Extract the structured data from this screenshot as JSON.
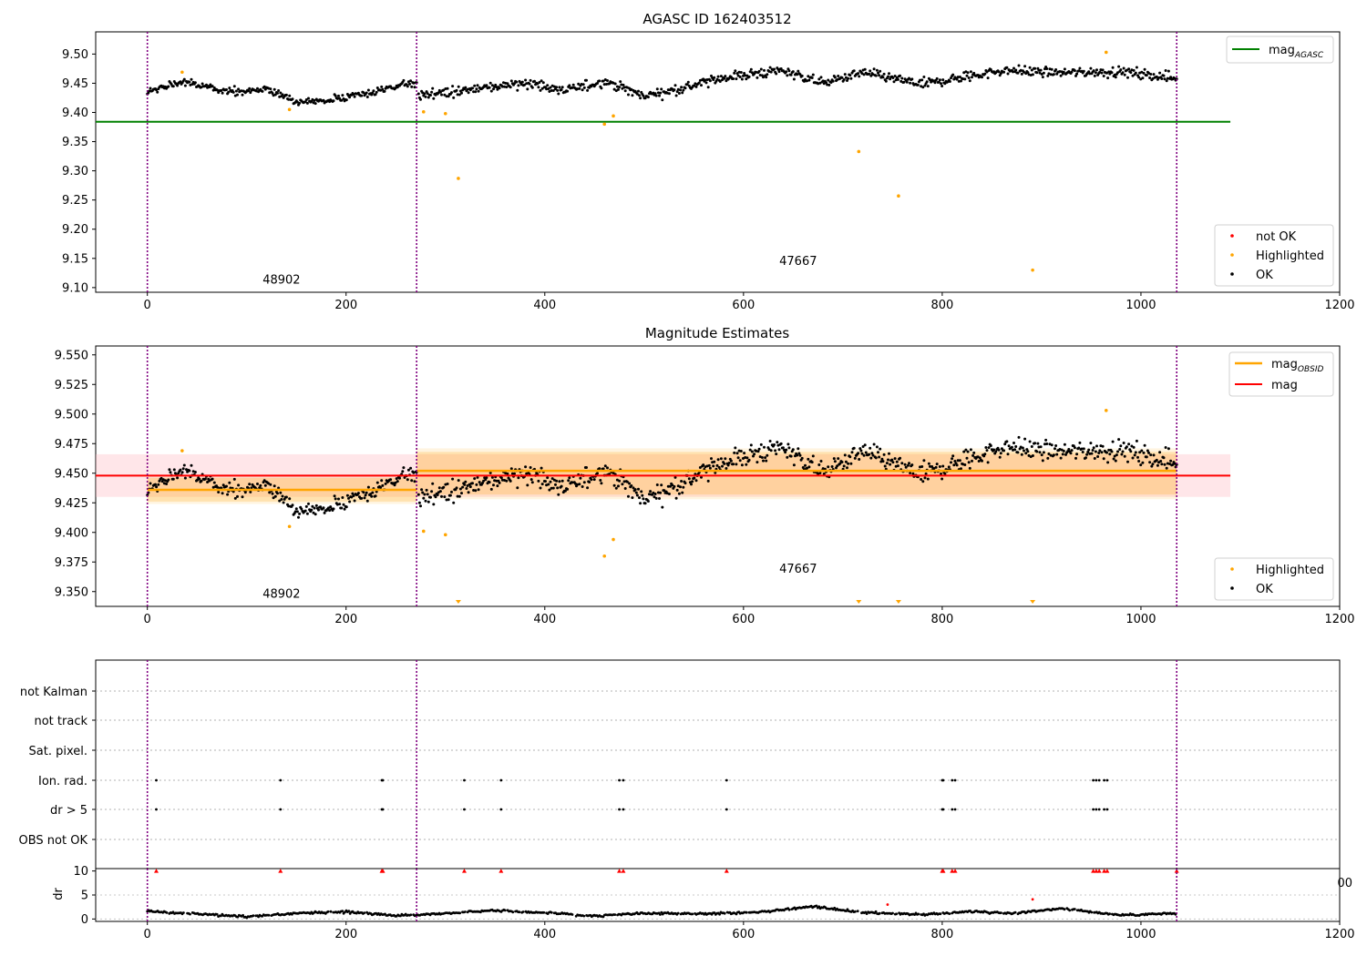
{
  "chart_data": [
    {
      "type": "scatter",
      "title": "AGASC ID 162403512",
      "xlim": [
        -52,
        1200
      ],
      "ylim": [
        9.092,
        9.538
      ],
      "xticks": [
        "0",
        "200",
        "400",
        "600",
        "800",
        "1000",
        "1200"
      ],
      "yticks": [
        "9.10",
        "9.15",
        "9.20",
        "9.25",
        "9.30",
        "9.35",
        "9.40",
        "9.45",
        "9.50"
      ],
      "vlines": [
        0,
        271,
        1036
      ],
      "obsid_labels": [
        {
          "text": "48902",
          "x": 135,
          "y": 9.107
        },
        {
          "text": "47667",
          "x": 655,
          "y": 9.139
        }
      ],
      "legend_top": {
        "items": [
          {
            "label": "mag",
            "sub": "AGASC",
            "color": "#008000"
          }
        ]
      },
      "legend_bottom": {
        "items": [
          {
            "label": "not OK",
            "color": "#ff0000"
          },
          {
            "label": "Highlighted",
            "color": "#ffa500"
          },
          {
            "label": "OK",
            "color": "#000000"
          }
        ]
      },
      "mag_agasc": {
        "value": 9.384,
        "xrange": [
          -52,
          1090
        ]
      },
      "series": [
        {
          "name": "Highlighted",
          "color": "#ffa500",
          "points": [
            [
              35,
              9.469
            ],
            [
              143,
              9.405
            ],
            [
              278,
              9.401
            ],
            [
              300,
              9.398
            ],
            [
              313,
              9.287
            ],
            [
              460,
              9.38
            ],
            [
              469,
              9.394
            ],
            [
              716,
              9.333
            ],
            [
              756,
              9.257
            ],
            [
              891,
              9.13
            ],
            [
              965,
              9.503
            ]
          ]
        },
        {
          "name": "OK",
          "color": "#000000",
          "segments": [
            {
              "x0": 0,
              "x1": 271,
              "n": 270,
              "c": [
                [
                  0,
                  9.437
                ],
                [
                  40,
                  9.452
                ],
                [
                  80,
                  9.434
                ],
                [
                  120,
                  9.44
                ],
                [
                  150,
                  9.418
                ],
                [
                  180,
                  9.42
                ],
                [
                  210,
                  9.428
                ],
                [
                  271,
                  9.452
                ]
              ],
              "s": 0.008
            },
            {
              "x0": 273,
              "x1": 1036,
              "n": 760,
              "c": [
                [
                  273,
                  9.43
                ],
                [
                  320,
                  9.437
                ],
                [
                  380,
                  9.452
                ],
                [
                  420,
                  9.436
                ],
                [
                  460,
                  9.454
                ],
                [
                  500,
                  9.428
                ],
                [
                  540,
                  9.442
                ],
                [
                  580,
                  9.46
                ],
                [
                  640,
                  9.472
                ],
                [
                  680,
                  9.45
                ],
                [
                  720,
                  9.468
                ],
                [
                  780,
                  9.448
                ],
                [
                  820,
                  9.46
                ],
                [
                  860,
                  9.472
                ],
                [
                  920,
                  9.468
                ],
                [
                  980,
                  9.47
                ],
                [
                  1036,
                  9.458
                ]
              ],
              "s": 0.011
            }
          ]
        }
      ]
    },
    {
      "type": "scatter",
      "title": "Magnitude Estimates",
      "xlim": [
        -52,
        1200
      ],
      "ylim": [
        9.3375,
        9.5575
      ],
      "xticks": [
        "0",
        "200",
        "400",
        "600",
        "800",
        "1000",
        "1200"
      ],
      "yticks": [
        "9.350",
        "9.375",
        "9.400",
        "9.425",
        "9.450",
        "9.475",
        "9.500",
        "9.525",
        "9.550"
      ],
      "vlines": [
        0,
        271,
        1036
      ],
      "obsid_labels": [
        {
          "text": "48902",
          "x": 135,
          "y": 9.345
        },
        {
          "text": "47667",
          "x": 655,
          "y": 9.366
        }
      ],
      "legend_top": {
        "items": [
          {
            "label": "mag",
            "sub": "OBSID",
            "color": "#ffa500"
          },
          {
            "label": "mag",
            "color": "#ff0000"
          }
        ]
      },
      "legend_bottom": {
        "items": [
          {
            "label": "Highlighted",
            "color": "#ffa500"
          },
          {
            "label": "OK",
            "color": "#000000"
          }
        ]
      },
      "mag": {
        "value": 9.448,
        "band": [
          9.43,
          9.466
        ],
        "xrange": [
          -52,
          1090
        ]
      },
      "mag_obsid": [
        {
          "x0": 0,
          "x1": 271,
          "value": 9.436,
          "band": [
            9.426,
            9.446
          ],
          "band_outer": [
            9.424,
            9.448
          ]
        },
        {
          "x0": 271,
          "x1": 1036,
          "value": 9.452,
          "band": [
            9.432,
            9.468
          ],
          "band_outer": [
            9.428,
            9.471
          ]
        }
      ],
      "out_of_range_markers": [
        313,
        716,
        756,
        891
      ],
      "series": [
        {
          "name": "Highlighted",
          "color": "#ffa500",
          "points": [
            [
              35,
              9.469
            ],
            [
              143,
              9.405
            ],
            [
              278,
              9.401
            ],
            [
              300,
              9.398
            ],
            [
              460,
              9.38
            ],
            [
              469,
              9.394
            ],
            [
              965,
              9.503
            ]
          ]
        },
        {
          "name": "OK",
          "color": "#000000",
          "segments": [
            {
              "x0": 0,
              "x1": 271,
              "n": 270,
              "c": [
                [
                  0,
                  9.437
                ],
                [
                  40,
                  9.452
                ],
                [
                  80,
                  9.434
                ],
                [
                  120,
                  9.44
                ],
                [
                  150,
                  9.418
                ],
                [
                  180,
                  9.42
                ],
                [
                  210,
                  9.428
                ],
                [
                  271,
                  9.452
                ]
              ],
              "s": 0.008
            },
            {
              "x0": 273,
              "x1": 1036,
              "n": 760,
              "c": [
                [
                  273,
                  9.43
                ],
                [
                  320,
                  9.437
                ],
                [
                  380,
                  9.452
                ],
                [
                  420,
                  9.436
                ],
                [
                  460,
                  9.454
                ],
                [
                  500,
                  9.428
                ],
                [
                  540,
                  9.442
                ],
                [
                  580,
                  9.46
                ],
                [
                  640,
                  9.472
                ],
                [
                  680,
                  9.45
                ],
                [
                  720,
                  9.468
                ],
                [
                  780,
                  9.448
                ],
                [
                  820,
                  9.46
                ],
                [
                  860,
                  9.472
                ],
                [
                  920,
                  9.468
                ],
                [
                  980,
                  9.47
                ],
                [
                  1036,
                  9.458
                ]
              ],
              "s": 0.011
            }
          ]
        }
      ]
    },
    {
      "type": "scatter",
      "title": "",
      "xlim": [
        -52,
        1200
      ],
      "categories": [
        "not Kalman",
        "not track",
        "Sat. pixel.",
        "Ion. rad.",
        "dr > 5",
        "OBS not OK"
      ],
      "vlines": [
        0,
        271,
        1036
      ],
      "flags": {
        "Ion. rad.": [
          9,
          134,
          236,
          237,
          319,
          356,
          475,
          479,
          583,
          800,
          801,
          810,
          813,
          952,
          955,
          958,
          963,
          966
        ],
        "dr > 5": [
          9,
          134,
          236,
          237,
          319,
          356,
          475,
          479,
          583,
          800,
          801,
          810,
          813,
          952,
          955,
          958,
          963,
          966
        ]
      }
    },
    {
      "type": "scatter",
      "title": "",
      "ylabel": "dr",
      "xlim": [
        -52,
        1200
      ],
      "ylim": [
        -0.5,
        10.5
      ],
      "xticks": [
        "0",
        "200",
        "400",
        "600",
        "800",
        "1000",
        "1200"
      ],
      "yticks": [
        "0",
        "5",
        "10"
      ],
      "vlines": [
        0,
        271,
        1036
      ],
      "clipped_marker_value": 10,
      "clipped_x": [
        9,
        134,
        236,
        237,
        319,
        356,
        475,
        479,
        583,
        800,
        801,
        810,
        813,
        952,
        955,
        958,
        963,
        966,
        1036
      ],
      "outliers": [
        [
          745,
          3.0
        ],
        [
          891,
          4.1
        ]
      ],
      "dr_trace": {
        "x0": 0,
        "x1": 1036,
        "c": [
          [
            0,
            1.6
          ],
          [
            50,
            1.1
          ],
          [
            100,
            0.5
          ],
          [
            150,
            1.2
          ],
          [
            200,
            1.5
          ],
          [
            250,
            0.7
          ],
          [
            300,
            1.2
          ],
          [
            350,
            1.8
          ],
          [
            400,
            1.3
          ],
          [
            450,
            0.6
          ],
          [
            500,
            1.2
          ],
          [
            560,
            1.1
          ],
          [
            620,
            1.5
          ],
          [
            670,
            2.6
          ],
          [
            720,
            1.3
          ],
          [
            780,
            0.9
          ],
          [
            830,
            1.6
          ],
          [
            870,
            1.2
          ],
          [
            920,
            2.2
          ],
          [
            980,
            0.8
          ],
          [
            1036,
            1.2
          ]
        ]
      }
    }
  ],
  "stray_text": "00"
}
